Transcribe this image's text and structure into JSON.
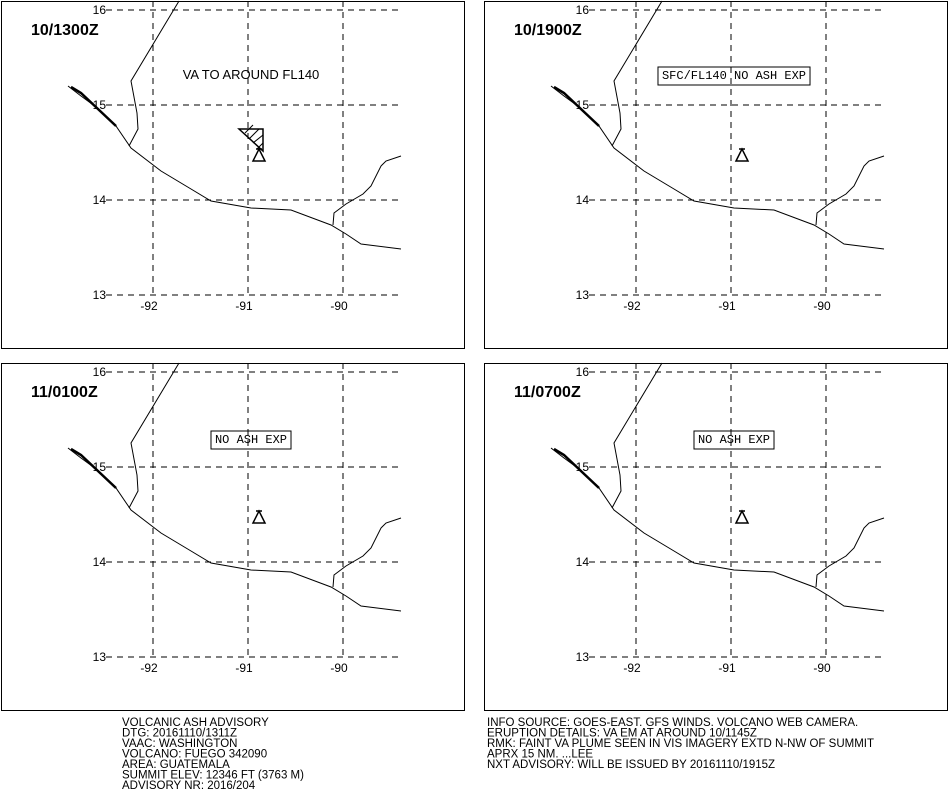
{
  "panels": [
    {
      "time": "10/1300Z",
      "annotation": "VA TO AROUND FL140",
      "boxed": false,
      "hatched_area": true,
      "lat_labels": [
        "16",
        "15",
        "14",
        "13"
      ],
      "lon_labels": [
        "-92",
        "-91",
        "-90"
      ]
    },
    {
      "time": "10/1900Z",
      "annotation": "SFC/FL140 NO ASH EXP",
      "boxed": true,
      "hatched_area": false,
      "lat_labels": [
        "16",
        "15",
        "14",
        "13"
      ],
      "lon_labels": [
        "-92",
        "-91",
        "-90"
      ]
    },
    {
      "time": "11/0100Z",
      "annotation": "NO ASH EXP",
      "boxed": true,
      "hatched_area": false,
      "lat_labels": [
        "16",
        "15",
        "14",
        "13"
      ],
      "lon_labels": [
        "-92",
        "-91",
        "-90"
      ]
    },
    {
      "time": "11/0700Z",
      "annotation": "NO ASH EXP",
      "boxed": true,
      "hatched_area": false,
      "lat_labels": [
        "16",
        "15",
        "14",
        "13"
      ],
      "lon_labels": [
        "-92",
        "-91",
        "-90"
      ]
    }
  ],
  "footer": {
    "left": [
      "VOLCANIC ASH ADVISORY",
      "DTG: 20161110/1311Z",
      "VAAC: WASHINGTON",
      "VOLCANO: FUEGO 342090",
      "AREA: GUATEMALA",
      "SUMMIT ELEV: 12346 FT (3763 M)",
      "ADVISORY NR: 2016/204"
    ],
    "right": [
      "INFO SOURCE: GOES-EAST. GFS WINDS. VOLCANO WEB CAMERA.",
      "ERUPTION DETAILS: VA EM AT AROUND 10/1145Z",
      "RMK: FAINT VA PLUME SEEN IN VIS IMAGERY EXTD N-NW OF SUMMIT",
      "APRX 15 NM. ...LEE",
      "NXT ADVISORY: WILL BE ISSUED BY 20161110/1915Z"
    ]
  }
}
